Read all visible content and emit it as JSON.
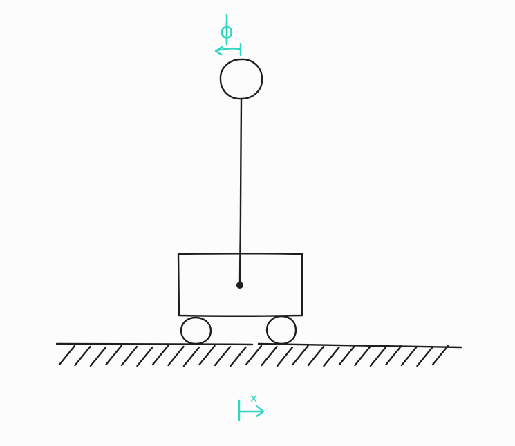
{
  "colors": {
    "background": "#fcfcfc",
    "ink": "#1e1e1e",
    "accent": "#2fd6c0"
  },
  "labels": {
    "angle": "ϕ",
    "position": "x"
  },
  "parts": {
    "bob_icon": "circle",
    "pivot_icon": "dot",
    "wheel_icon": "circle",
    "ground_icon": "hatched-line",
    "angle_arrow_icon": "curved-arrow-left",
    "position_arrow_icon": "arrow-right"
  }
}
